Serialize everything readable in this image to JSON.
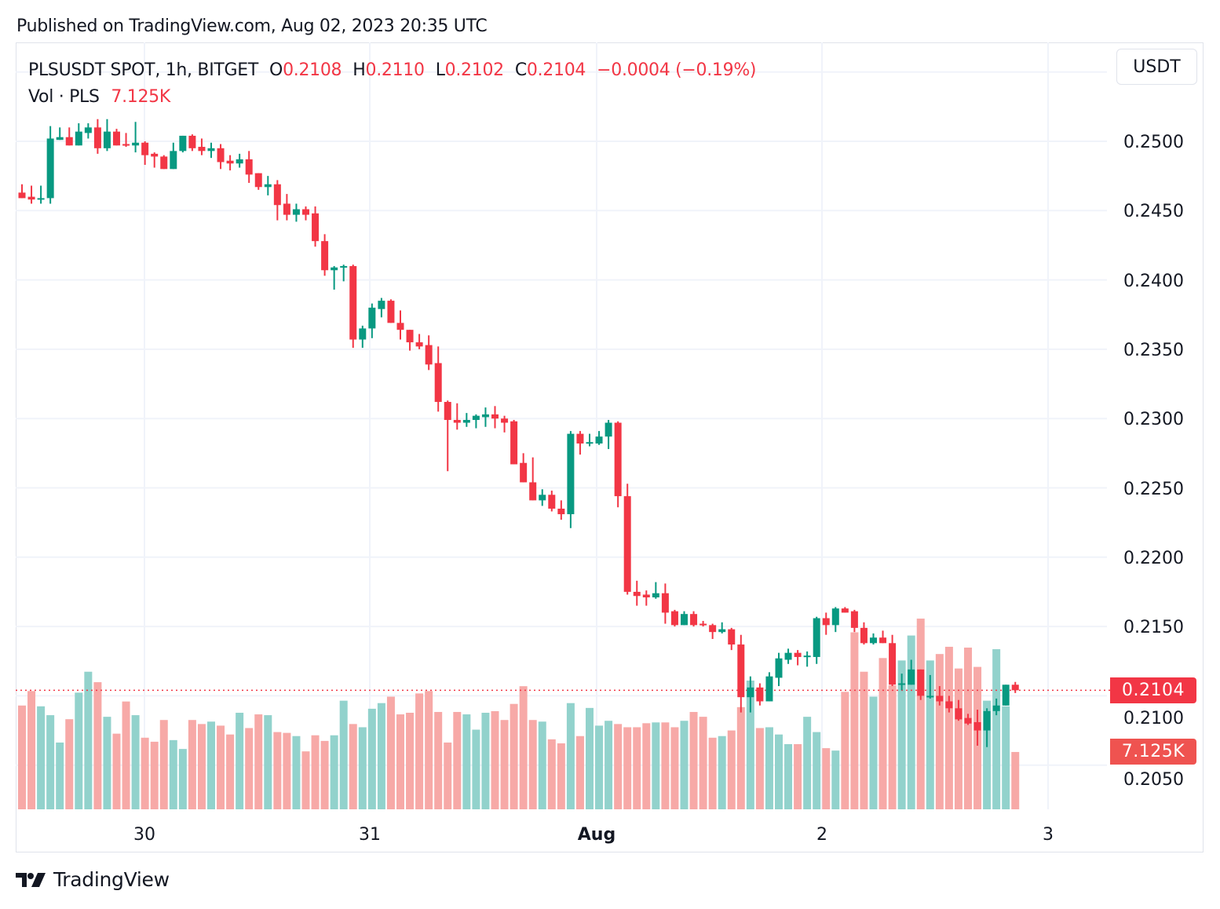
{
  "header": {
    "published": "Published on TradingView.com, Aug 02, 2023 20:35 UTC"
  },
  "legend": {
    "symbol": "PLSUSDT SPOT, 1h, BITGET",
    "o_label": "O",
    "o": "0.2108",
    "h_label": "H",
    "h": "0.2110",
    "l_label": "L",
    "l": "0.2102",
    "c_label": "C",
    "c": "0.2104",
    "change": "−0.0004 (−0.19%)",
    "vol_label": "Vol · PLS",
    "vol": "7.125K"
  },
  "currency_button": "USDT",
  "price_badge": "0.2104",
  "volume_badge": "7.125K",
  "branding": {
    "logo_text": "TradingView"
  },
  "colors": {
    "up": "#089981",
    "down": "#F23645",
    "up_volume": "#92D2CC",
    "down_volume": "#F7A9A7",
    "volume_badge": "#EF5350"
  },
  "chart_data": {
    "type": "candlestick",
    "interval": "1h",
    "y_ticks": [
      "0.2500",
      "0.2450",
      "0.2400",
      "0.2350",
      "0.2300",
      "0.2250",
      "0.2200",
      "0.2150",
      "0.2100",
      "0.2050"
    ],
    "x_ticks": [
      "30",
      "31",
      "Aug",
      "2",
      "3"
    ],
    "ylim": [
      0.205,
      0.255
    ],
    "grid": true,
    "last_price": 0.2104,
    "ohlc": [
      [
        0.2463,
        0.2469,
        0.2459,
        0.2459
      ],
      [
        0.246,
        0.2468,
        0.2455,
        0.2458
      ],
      [
        0.2458,
        0.2468,
        0.2455,
        0.2459
      ],
      [
        0.2459,
        0.2511,
        0.2455,
        0.2502
      ],
      [
        0.2501,
        0.251,
        0.2501,
        0.2503
      ],
      [
        0.2503,
        0.251,
        0.2497,
        0.2497
      ],
      [
        0.2497,
        0.2513,
        0.2497,
        0.2507
      ],
      [
        0.2506,
        0.2513,
        0.2502,
        0.251
      ],
      [
        0.251,
        0.2516,
        0.2491,
        0.2495
      ],
      [
        0.2495,
        0.2516,
        0.2493,
        0.2507
      ],
      [
        0.2507,
        0.2509,
        0.2497,
        0.2497
      ],
      [
        0.2498,
        0.2506,
        0.2496,
        0.2497
      ],
      [
        0.2497,
        0.2514,
        0.2492,
        0.2499
      ],
      [
        0.2499,
        0.25,
        0.2483,
        0.249
      ],
      [
        0.2491,
        0.2492,
        0.2481,
        0.2489
      ],
      [
        0.2489,
        0.249,
        0.248,
        0.248
      ],
      [
        0.248,
        0.2499,
        0.248,
        0.2493
      ],
      [
        0.2493,
        0.2504,
        0.2492,
        0.2504
      ],
      [
        0.2504,
        0.2505,
        0.2493,
        0.2495
      ],
      [
        0.2496,
        0.2502,
        0.249,
        0.2493
      ],
      [
        0.2493,
        0.2499,
        0.2488,
        0.2495
      ],
      [
        0.2495,
        0.2498,
        0.248,
        0.2485
      ],
      [
        0.2486,
        0.249,
        0.2479,
        0.2484
      ],
      [
        0.2484,
        0.2491,
        0.2481,
        0.2487
      ],
      [
        0.2487,
        0.2493,
        0.247,
        0.2476
      ],
      [
        0.2477,
        0.2477,
        0.2465,
        0.2467
      ],
      [
        0.2467,
        0.2475,
        0.2461,
        0.2469
      ],
      [
        0.2469,
        0.2472,
        0.2443,
        0.2454
      ],
      [
        0.2455,
        0.2462,
        0.2443,
        0.2447
      ],
      [
        0.2447,
        0.2455,
        0.2442,
        0.2451
      ],
      [
        0.2451,
        0.2453,
        0.2443,
        0.2447
      ],
      [
        0.2448,
        0.2453,
        0.2424,
        0.2428
      ],
      [
        0.2428,
        0.2433,
        0.2403,
        0.2407
      ],
      [
        0.2407,
        0.241,
        0.2393,
        0.2409
      ],
      [
        0.2409,
        0.2411,
        0.2399,
        0.241
      ],
      [
        0.241,
        0.2411,
        0.2351,
        0.2357
      ],
      [
        0.2357,
        0.2367,
        0.2351,
        0.2365
      ],
      [
        0.2365,
        0.2383,
        0.2358,
        0.238
      ],
      [
        0.2379,
        0.2387,
        0.2373,
        0.2385
      ],
      [
        0.2385,
        0.2386,
        0.2369,
        0.2369
      ],
      [
        0.2369,
        0.2378,
        0.2357,
        0.2364
      ],
      [
        0.2364,
        0.2364,
        0.2349,
        0.2355
      ],
      [
        0.2355,
        0.2361,
        0.235,
        0.2352
      ],
      [
        0.2353,
        0.236,
        0.2335,
        0.2339
      ],
      [
        0.234,
        0.2352,
        0.2305,
        0.2312
      ],
      [
        0.2312,
        0.2313,
        0.2262,
        0.2299
      ],
      [
        0.2299,
        0.2311,
        0.2292,
        0.2297
      ],
      [
        0.2297,
        0.2304,
        0.2294,
        0.2299
      ],
      [
        0.2299,
        0.2303,
        0.2293,
        0.2302
      ],
      [
        0.2301,
        0.2308,
        0.2294,
        0.2303
      ],
      [
        0.2303,
        0.2309,
        0.2293,
        0.23
      ],
      [
        0.23,
        0.2302,
        0.229,
        0.2297
      ],
      [
        0.2298,
        0.2299,
        0.2267,
        0.2267
      ],
      [
        0.2268,
        0.2275,
        0.2254,
        0.2254
      ],
      [
        0.2254,
        0.2272,
        0.2241,
        0.2241
      ],
      [
        0.2241,
        0.2249,
        0.2237,
        0.2245
      ],
      [
        0.2245,
        0.2248,
        0.2233,
        0.2235
      ],
      [
        0.2235,
        0.2241,
        0.2227,
        0.2231
      ],
      [
        0.2231,
        0.2291,
        0.2221,
        0.2289
      ],
      [
        0.2289,
        0.2291,
        0.2274,
        0.2282
      ],
      [
        0.2282,
        0.2289,
        0.228,
        0.2283
      ],
      [
        0.2282,
        0.2291,
        0.2281,
        0.2287
      ],
      [
        0.2287,
        0.2299,
        0.2278,
        0.2297
      ],
      [
        0.2297,
        0.2298,
        0.2236,
        0.2244
      ],
      [
        0.2244,
        0.2253,
        0.2173,
        0.2175
      ],
      [
        0.2175,
        0.2183,
        0.2165,
        0.2172
      ],
      [
        0.2173,
        0.2176,
        0.2165,
        0.2171
      ],
      [
        0.2171,
        0.2182,
        0.217,
        0.2174
      ],
      [
        0.2174,
        0.2181,
        0.2152,
        0.216
      ],
      [
        0.2161,
        0.2162,
        0.215,
        0.2151
      ],
      [
        0.2151,
        0.2161,
        0.2151,
        0.2159
      ],
      [
        0.2159,
        0.2161,
        0.215,
        0.2151
      ],
      [
        0.2152,
        0.2154,
        0.215,
        0.2151
      ],
      [
        0.2151,
        0.2152,
        0.2141,
        0.2146
      ],
      [
        0.2146,
        0.2153,
        0.2145,
        0.2148
      ],
      [
        0.2148,
        0.2149,
        0.2133,
        0.2137
      ],
      [
        0.2137,
        0.2144,
        0.2088,
        0.2099
      ],
      [
        0.2099,
        0.2114,
        0.2088,
        0.2106
      ],
      [
        0.2106,
        0.2109,
        0.2093,
        0.2096
      ],
      [
        0.2096,
        0.2117,
        0.2096,
        0.2114
      ],
      [
        0.2113,
        0.2131,
        0.2107,
        0.2127
      ],
      [
        0.2126,
        0.2134,
        0.2123,
        0.2131
      ],
      [
        0.2131,
        0.2133,
        0.2122,
        0.2128
      ],
      [
        0.2128,
        0.2132,
        0.2121,
        0.2129
      ],
      [
        0.2128,
        0.2157,
        0.2123,
        0.2156
      ],
      [
        0.2156,
        0.216,
        0.2144,
        0.2151
      ],
      [
        0.2151,
        0.2164,
        0.2146,
        0.2163
      ],
      [
        0.2163,
        0.2164,
        0.216,
        0.216
      ],
      [
        0.2161,
        0.2162,
        0.2146,
        0.2149
      ],
      [
        0.2149,
        0.2153,
        0.2137,
        0.2138
      ],
      [
        0.2138,
        0.2145,
        0.2137,
        0.2142
      ],
      [
        0.2142,
        0.2147,
        0.2138,
        0.2138
      ],
      [
        0.2138,
        0.2144,
        0.2107,
        0.2108
      ],
      [
        0.2108,
        0.2116,
        0.2104,
        0.2109
      ],
      [
        0.2108,
        0.2126,
        0.2108,
        0.2119
      ],
      [
        0.2119,
        0.2119,
        0.2097,
        0.21
      ],
      [
        0.21,
        0.2115,
        0.2098,
        0.21
      ],
      [
        0.21,
        0.2107,
        0.2093,
        0.2096
      ],
      [
        0.2096,
        0.21,
        0.2088,
        0.2091
      ],
      [
        0.2091,
        0.2097,
        0.2082,
        0.2083
      ],
      [
        0.2084,
        0.2087,
        0.2079,
        0.208
      ],
      [
        0.2081,
        0.209,
        0.2064,
        0.2075
      ],
      [
        0.2075,
        0.2091,
        0.2063,
        0.2089
      ],
      [
        0.2089,
        0.2098,
        0.2086,
        0.2093
      ],
      [
        0.2093,
        0.2108,
        0.2093,
        0.2108
      ],
      [
        0.2108,
        0.211,
        0.2102,
        0.2104
      ]
    ],
    "up_flags_note_free": null,
    "volume_k": [
      12.9,
      14.7,
      12.8,
      11.7,
      8.3,
      11.2,
      14.5,
      17.1,
      15.8,
      11.5,
      9.4,
      13.4,
      11.7,
      8.9,
      8.4,
      11.1,
      8.6,
      7.5,
      11.1,
      10.6,
      10.9,
      10.4,
      9.3,
      12.0,
      10.1,
      11.8,
      11.7,
      9.6,
      9.5,
      9.1,
      7.2,
      9.2,
      8.5,
      9.2,
      13.5,
      10.6,
      10.2,
      12.5,
      13.2,
      14.0,
      11.8,
      12.0,
      14.4,
      14.7,
      12.1,
      8.3,
      12.1,
      11.8,
      9.9,
      12.0,
      12.2,
      11.1,
      13.1,
      15.3,
      11.1,
      10.9,
      8.7,
      8.2,
      13.2,
      9.1,
      12.6,
      10.4,
      11.0,
      10.6,
      10.2,
      10.2,
      10.7,
      10.8,
      10.8,
      10.2,
      11.0,
      12.1,
      11.5,
      8.9,
      9.1,
      9.8,
      12.7,
      16.0,
      10.1,
      10.2,
      9.3,
      8.1,
      8.1,
      11.5,
      9.6,
      7.6,
      7.3,
      14.6,
      22.0,
      17.1,
      14.0,
      18.8,
      15.4,
      18.5,
      21.6,
      23.7,
      18.5,
      19.3,
      20.2,
      17.5,
      20.1,
      17.7,
      13.5,
      19.9,
      12.8,
      7.125
    ]
  }
}
